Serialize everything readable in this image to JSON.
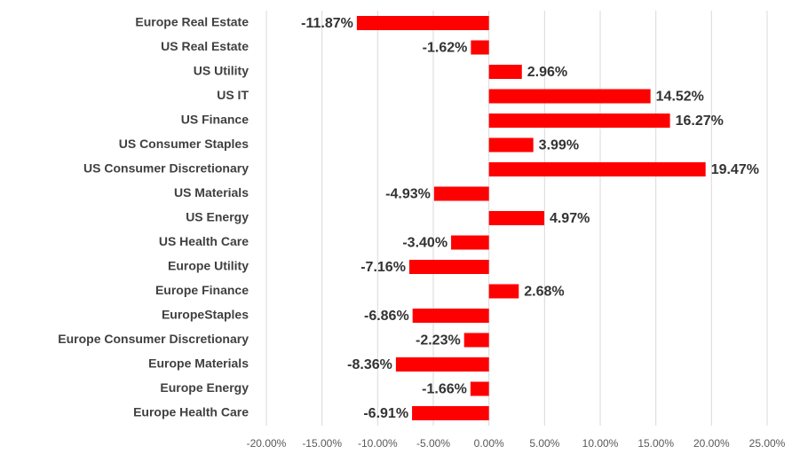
{
  "chart_data": {
    "type": "barh",
    "categories": [
      "Europe Real Estate",
      "US Real Estate",
      "US Utility",
      "US IT",
      "US Finance",
      "US Consumer Staples",
      "US Consumer Discretionary",
      "US Materials",
      "US Energy",
      "US Health Care",
      "Europe Utility",
      "Europe Finance",
      "EuropeStaples",
      "Europe Consumer Discretionary",
      "Europe Materials",
      "Europe Energy",
      "Europe Health Care"
    ],
    "values": [
      -11.87,
      -1.62,
      2.96,
      14.52,
      16.27,
      3.99,
      19.47,
      -4.93,
      4.97,
      -3.4,
      -7.16,
      2.68,
      -6.86,
      -2.23,
      -8.36,
      -1.66,
      -6.91
    ],
    "value_labels": [
      "-11.87%",
      "-1.62%",
      "2.96%",
      "14.52%",
      "16.27%",
      "3.99%",
      "19.47%",
      "-4.93%",
      "4.97%",
      "-3.40%",
      "-7.16%",
      "2.68%",
      "-6.86%",
      "-2.23%",
      "-8.36%",
      "-1.66%",
      "-6.91%"
    ],
    "color": "#ff0000",
    "xlim": [
      -20,
      25
    ],
    "xticks": [
      {
        "value": -20,
        "label": "-20.00%"
      },
      {
        "value": -15,
        "label": "-15.00%"
      },
      {
        "value": -10,
        "label": "-10.00%"
      },
      {
        "value": -5,
        "label": "-5.00%"
      },
      {
        "value": 0,
        "label": "0.00%"
      },
      {
        "value": 5,
        "label": "5.00%"
      },
      {
        "value": 10,
        "label": "10.00%"
      },
      {
        "value": 15,
        "label": "15.00%"
      },
      {
        "value": 20,
        "label": "20.00%"
      },
      {
        "value": 25,
        "label": "25.00%"
      }
    ],
    "grid": true
  }
}
